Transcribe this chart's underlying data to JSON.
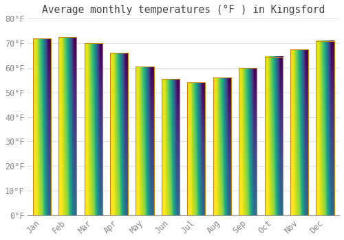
{
  "title": "Average monthly temperatures (°F ) in Kingsford",
  "months": [
    "Jan",
    "Feb",
    "Mar",
    "Apr",
    "May",
    "Jun",
    "Jul",
    "Aug",
    "Sep",
    "Oct",
    "Nov",
    "Dec"
  ],
  "values": [
    72,
    72.5,
    70,
    66,
    60.5,
    55.5,
    54,
    56,
    60,
    64.5,
    67.5,
    71
  ],
  "bar_color_top": "#F5A623",
  "bar_color_bottom": "#FFD966",
  "bar_edge_color": "#C8860A",
  "ylim": [
    0,
    80
  ],
  "ytick_step": 10,
  "background_color": "#FFFFFF",
  "plot_bg_color": "#FFFFFF",
  "grid_color": "#DDDDDD",
  "title_fontsize": 10.5,
  "tick_fontsize": 8.5,
  "tick_color": "#888888",
  "bar_width": 0.7
}
